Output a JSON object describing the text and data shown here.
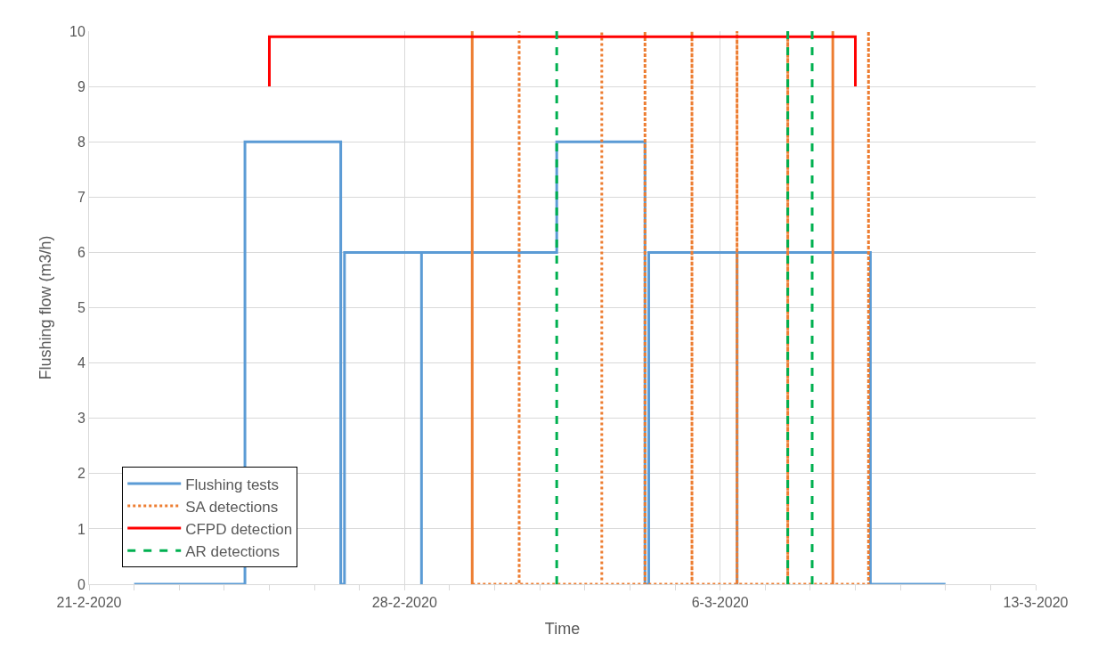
{
  "chart_data": {
    "type": "line",
    "xlabel": "Time",
    "ylabel": "Flushing flow (m3/h)",
    "xlim": [
      "2020-02-21",
      "2020-03-13"
    ],
    "xticks": [
      {
        "value": "2020-02-21",
        "label": "21-2-2020"
      },
      {
        "value": "2020-02-22",
        "label": null
      },
      {
        "value": "2020-02-23",
        "label": null
      },
      {
        "value": "2020-02-24",
        "label": null
      },
      {
        "value": "2020-02-25",
        "label": null
      },
      {
        "value": "2020-02-26",
        "label": null
      },
      {
        "value": "2020-02-27",
        "label": null
      },
      {
        "value": "2020-02-28",
        "label": "28-2-2020"
      },
      {
        "value": "2020-02-29",
        "label": null
      },
      {
        "value": "2020-03-01",
        "label": null
      },
      {
        "value": "2020-03-02",
        "label": null
      },
      {
        "value": "2020-03-03",
        "label": null
      },
      {
        "value": "2020-03-04",
        "label": null
      },
      {
        "value": "2020-03-05",
        "label": null
      },
      {
        "value": "2020-03-06",
        "label": "6-3-2020"
      },
      {
        "value": "2020-03-07",
        "label": null
      },
      {
        "value": "2020-03-08",
        "label": null
      },
      {
        "value": "2020-03-09",
        "label": null
      },
      {
        "value": "2020-03-10",
        "label": null
      },
      {
        "value": "2020-03-11",
        "label": null
      },
      {
        "value": "2020-03-12",
        "label": null
      },
      {
        "value": "2020-03-13",
        "label": "13-3-2020"
      }
    ],
    "ylim": [
      0,
      10
    ],
    "yticks": [
      0,
      1,
      2,
      3,
      4,
      5,
      6,
      7,
      8,
      9,
      10
    ],
    "grid": true,
    "legend": "bottom left",
    "series": [
      {
        "name": "Flushing tests",
        "color": "#5b9bd5",
        "line_style": "solid",
        "x": [
          "2020-02-22",
          "2020-02-24T11:00",
          "2020-02-24T11:00",
          "2020-02-26T14:00",
          "2020-02-26T14:00",
          "2020-02-26T16:00",
          "2020-02-26T16:00",
          "2020-02-28T09:00",
          "2020-02-28T09:00",
          "2020-02-28T09:00",
          "2020-03-02T09:00",
          "2020-03-02T09:00",
          "2020-03-04T08:00",
          "2020-03-04T08:00",
          "2020-03-04T10:00",
          "2020-03-04T10:00",
          "2020-03-06T09:00",
          "2020-03-06T09:00",
          "2020-03-06T09:00",
          "2020-03-09T08:00",
          "2020-03-09T08:00",
          "2020-03-11"
        ],
        "values": [
          0,
          0,
          8,
          8,
          0,
          0,
          6,
          6,
          0,
          6,
          6,
          8,
          8,
          0,
          0,
          6,
          6,
          0,
          6,
          6,
          0,
          0
        ]
      },
      {
        "name": "SA detections",
        "color": "#ed7d31",
        "line_style": "dotted",
        "x": [
          "2020-02-29T12:00",
          "2020-02-29T12:00",
          "2020-02-29T12:00",
          "2020-03-01T13:00",
          "2020-03-01T13:00",
          "2020-03-01T13:00",
          "2020-03-03T09:00",
          "2020-03-03T09:00",
          "2020-03-03T09:00",
          "2020-03-04T08:00",
          "2020-03-04T08:00",
          "2020-03-04T08:00",
          "2020-03-05T09:00",
          "2020-03-05T09:00",
          "2020-03-05T09:00",
          "2020-03-06T09:00",
          "2020-03-06T09:00",
          "2020-03-06T09:00",
          "2020-03-07T12:00",
          "2020-03-07T12:00",
          "2020-03-07T12:00",
          "2020-03-08T12:00",
          "2020-03-08T12:00",
          "2020-03-08T12:00",
          "2020-03-09T07:00",
          "2020-03-09T07:00",
          "2020-03-09T07:00"
        ],
        "values": [
          0,
          10,
          0,
          0,
          10,
          0,
          0,
          10,
          0,
          0,
          10,
          0,
          0,
          10,
          0,
          0,
          10,
          0,
          0,
          10,
          0,
          0,
          10,
          0,
          0,
          10,
          0
        ]
      },
      {
        "name": "CFPD detection",
        "color": "#ff0000",
        "line_style": "solid",
        "x": [
          "2020-02-25",
          "2020-02-25",
          "2020-03-09",
          "2020-03-09"
        ],
        "values": [
          9,
          9.9,
          9.9,
          9
        ]
      },
      {
        "name": "AR detections",
        "color": "#00b050",
        "line_style": "dashed",
        "x": [
          "2020-03-02T09:00",
          "2020-03-02T09:00",
          null,
          "2020-03-07T12:00",
          "2020-03-07T12:00",
          null,
          "2020-03-08T01:00",
          "2020-03-08T01:00"
        ],
        "values": [
          0,
          10,
          null,
          0,
          10,
          null,
          0,
          10
        ]
      }
    ]
  }
}
